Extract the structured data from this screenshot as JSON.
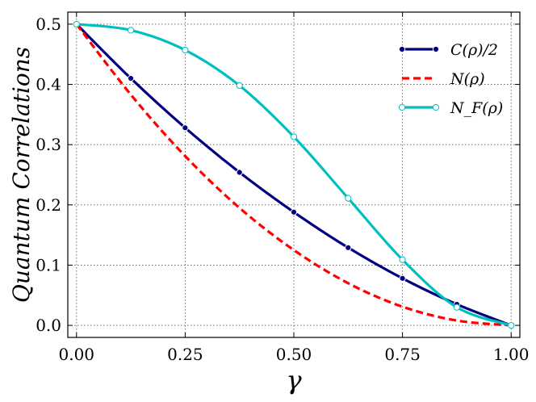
{
  "chart_data": {
    "type": "line",
    "xlabel": "γ",
    "ylabel": "Quantum Correlations",
    "xlim": [
      -0.02,
      1.02
    ],
    "ylim": [
      -0.02,
      0.52
    ],
    "x_ticks": [
      0.0,
      0.25,
      0.5,
      0.75,
      1.0
    ],
    "x_tick_labels": [
      "0.00",
      "0.25",
      "0.50",
      "0.75",
      "1.00"
    ],
    "y_ticks": [
      0.0,
      0.1,
      0.2,
      0.3,
      0.4,
      0.5
    ],
    "y_tick_labels": [
      "0.0",
      "0.1",
      "0.2",
      "0.3",
      "0.4",
      "0.5"
    ],
    "grid": true,
    "legend_position": "top-right",
    "series": [
      {
        "name": "C(ρ)/2",
        "color": "#000080",
        "style": "solid",
        "marker": "filled-circle",
        "x": [
          0.0,
          0.125,
          0.25,
          0.375,
          0.5,
          0.625,
          0.75,
          0.875,
          1.0
        ],
        "y": [
          0.5,
          0.41,
          0.328,
          0.254,
          0.188,
          0.129,
          0.078,
          0.035,
          0.0
        ]
      },
      {
        "name": "N(ρ)",
        "color": "#ff0000",
        "style": "dashed",
        "marker": "none",
        "x": [
          0.0,
          0.125,
          0.25,
          0.375,
          0.5,
          0.625,
          0.75,
          0.875,
          1.0
        ],
        "y": [
          0.5,
          0.383,
          0.281,
          0.195,
          0.125,
          0.07,
          0.031,
          0.008,
          0.0
        ]
      },
      {
        "name": "N_F(ρ)",
        "color": "#00bfbf",
        "style": "solid",
        "marker": "open-circle",
        "x": [
          0.0,
          0.125,
          0.25,
          0.375,
          0.5,
          0.625,
          0.75,
          0.875,
          1.0
        ],
        "y": [
          0.5,
          0.49,
          0.457,
          0.398,
          0.313,
          0.211,
          0.109,
          0.03,
          0.0
        ]
      }
    ]
  }
}
